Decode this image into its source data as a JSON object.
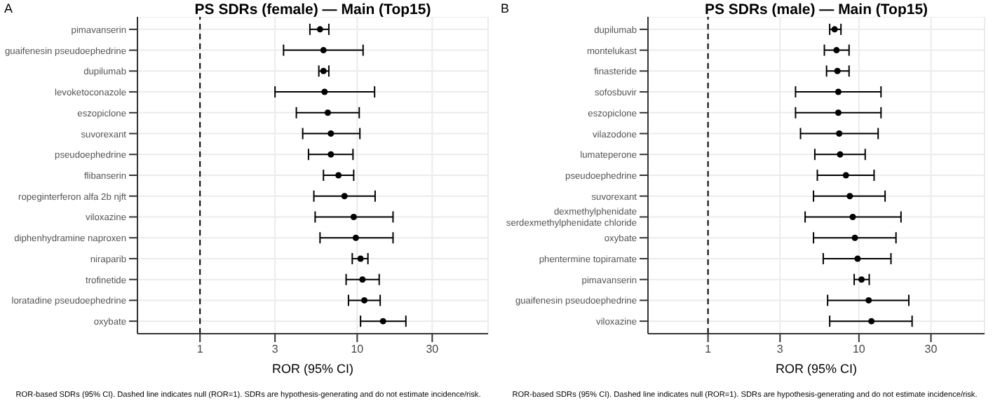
{
  "chart_data": [
    {
      "type": "scatter",
      "orientation": "horizontal",
      "title": "PS SDRs (female) — Main (Top15)",
      "xlabel": "ROR (95% CI)",
      "annotations": [
        "A",
        "ROR-based SDRs (95% CI). Dashed line indicates null (ROR=1). SDRs are hypothesis-generating and do not estimate incidence/risk."
      ],
      "categories": [
        "pimavanserin",
        "guaifenesin pseudoephedrine",
        "dupilumab",
        "levoketoconazole",
        "eszopiclone",
        "suvorexant",
        "pseudoephedrine",
        "flibanserin",
        "ropeginterferon alfa 2b njft",
        "viloxazine",
        "diphenhydramine naproxen",
        "niraparib",
        "trofinetide",
        "loratadine pseudoephedrine",
        "oxybate"
      ],
      "series": [
        {
          "color": "#000000",
          "values": [
            5.8,
            6.1,
            6.1,
            6.2,
            6.5,
            6.8,
            6.8,
            7.6,
            8.3,
            9.5,
            9.8,
            10.5,
            10.8,
            11.1,
            14.6
          ],
          "errors": [
            [
              5.0,
              6.6
            ],
            [
              3.4,
              10.9
            ],
            [
              5.7,
              6.6
            ],
            [
              3.0,
              12.9
            ],
            [
              4.1,
              10.3
            ],
            [
              4.5,
              10.4
            ],
            [
              4.9,
              9.4
            ],
            [
              6.1,
              9.5
            ],
            [
              5.3,
              13.0
            ],
            [
              5.4,
              16.9
            ],
            [
              5.8,
              16.9
            ],
            [
              9.3,
              11.7
            ],
            [
              8.5,
              13.8
            ],
            [
              8.8,
              14.0
            ],
            [
              10.5,
              20.4
            ]
          ]
        }
      ],
      "log": "x",
      "xlim": [
        0.4,
        68
      ],
      "xticks": [
        1,
        3,
        10,
        30
      ],
      "grid": true,
      "marker": "circle",
      "legend": false,
      "ref_lines": [
        {
          "axis": "x",
          "value": 1,
          "line_style": "dashed",
          "color": "#000000"
        }
      ]
    },
    {
      "type": "scatter",
      "orientation": "horizontal",
      "title": "PS SDRs (male) — Main (Top15)",
      "xlabel": "ROR (95% CI)",
      "annotations": [
        "B",
        "ROR-based SDRs (95% CI). Dashed line indicates null (ROR=1). SDRs are hypothesis-generating and do not estimate incidence/risk."
      ],
      "categories": [
        "dupilumab",
        "montelukast",
        "finasteride",
        "sofosbuvir",
        "eszopiclone",
        "vilazodone",
        "lumateperone",
        "pseudoephedrine",
        "suvorexant",
        "dexmethylphenidate serdexmethylphenidate chloride",
        "oxybate",
        "phentermine topiramate",
        "pimavanserin",
        "guaifenesin pseudoephedrine",
        "viloxazine"
      ],
      "series": [
        {
          "color": "#000000",
          "values": [
            6.9,
            7.1,
            7.2,
            7.3,
            7.3,
            7.4,
            7.5,
            8.2,
            8.7,
            9.1,
            9.4,
            9.8,
            10.4,
            11.6,
            12.1
          ],
          "errors": [
            [
              6.4,
              7.6
            ],
            [
              5.9,
              8.6
            ],
            [
              6.1,
              8.6
            ],
            [
              3.8,
              14.0
            ],
            [
              3.8,
              14.0
            ],
            [
              4.1,
              13.4
            ],
            [
              5.1,
              11.0
            ],
            [
              5.3,
              12.6
            ],
            [
              5.0,
              14.9
            ],
            [
              4.4,
              19.0
            ],
            [
              5.0,
              17.6
            ],
            [
              5.8,
              16.3
            ],
            [
              9.3,
              11.7
            ],
            [
              6.2,
              21.4
            ],
            [
              6.4,
              22.5
            ]
          ]
        }
      ],
      "log": "x",
      "xlim": [
        0.4,
        68
      ],
      "xticks": [
        1,
        3,
        10,
        30
      ],
      "grid": true,
      "marker": "circle",
      "legend": false,
      "ref_lines": [
        {
          "axis": "x",
          "value": 1,
          "line_style": "dashed",
          "color": "#000000"
        }
      ]
    }
  ]
}
